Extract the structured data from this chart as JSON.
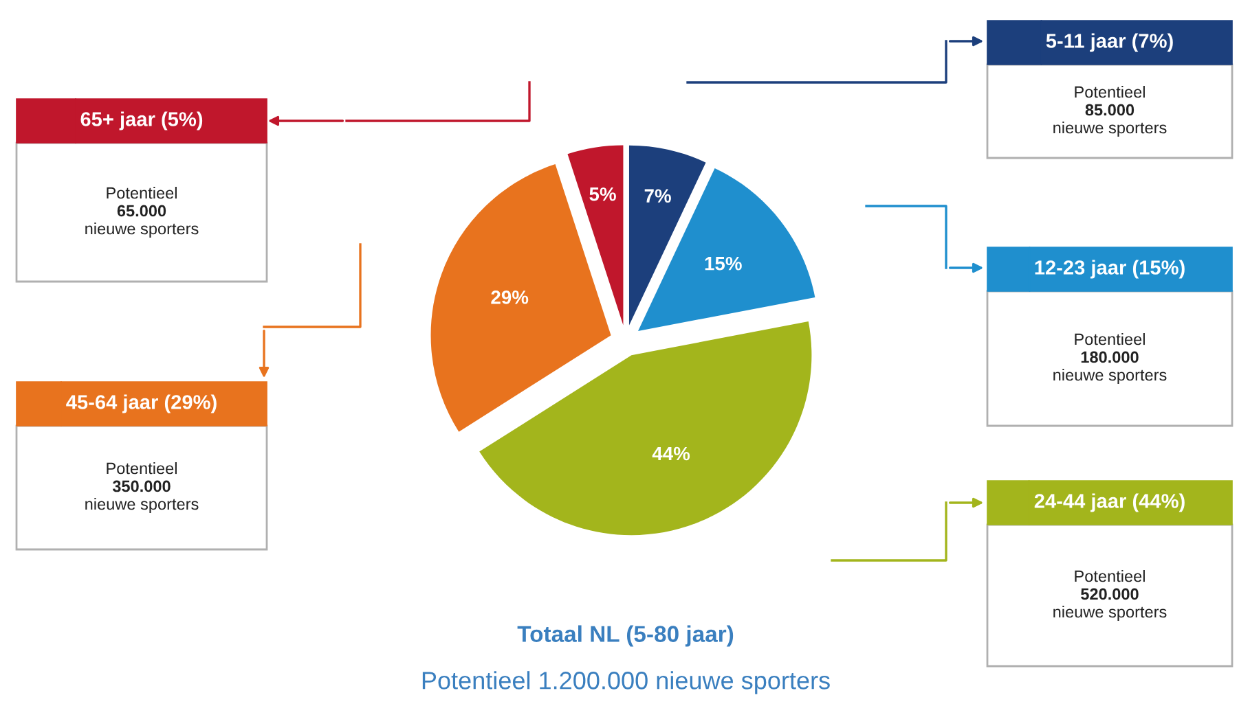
{
  "chart_data": {
    "type": "pie",
    "categories": [
      "5-11 jaar (7%)",
      "12-23 jaar (15%)",
      "24-44 jaar (44%)",
      "45-64 jaar (29%)",
      "65+ jaar (5%)"
    ],
    "values": [
      7,
      15,
      44,
      29,
      5
    ],
    "colors": [
      "#1c3f7c",
      "#1f8fce",
      "#a3b51c",
      "#e8731e",
      "#c0172c"
    ],
    "legend": "top left",
    "value_labels": [
      "7%",
      "15%",
      "44%",
      "29%",
      "5%"
    ],
    "annotations": [
      "Potentieel\n85.000\nnieuwe sporters",
      "Potentieel\n180.000\nnieuwe sporters",
      "Potentieel\n520.000\nnieuwe sporters",
      "Potentieel\n350.000\nnieuwe sporters",
      "Potentieel\n65.000\nnieuwe sporters",
      "Totaal NL (5-80 jaar)",
      "Potentieel 1.200.000 nieuwe sporters"
    ]
  }
}
